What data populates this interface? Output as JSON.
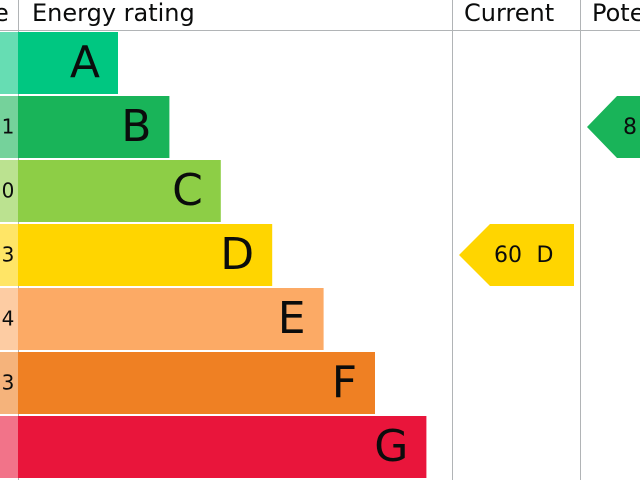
{
  "header": {
    "score": "e",
    "rating": "Energy rating",
    "current": "Current",
    "potential": "Pote"
  },
  "bands": [
    {
      "letter": "A",
      "score": "",
      "color": "#00c781",
      "light": "#66ddb3"
    },
    {
      "letter": "B",
      "score": "1",
      "color": "#19b459",
      "light": "#75d29b"
    },
    {
      "letter": "C",
      "score": "0",
      "color": "#8dce46",
      "light": "#bbe290"
    },
    {
      "letter": "D",
      "score": "3",
      "color": "#ffd500",
      "light": "#ffe566"
    },
    {
      "letter": "E",
      "score": "4",
      "color": "#fcaa65",
      "light": "#fdcca3"
    },
    {
      "letter": "F",
      "score": "3",
      "color": "#ef8023",
      "light": "#f5b37b"
    },
    {
      "letter": "G",
      "score": "",
      "color": "#e9153b",
      "light": "#f27389"
    }
  ],
  "current": {
    "score": "60",
    "band": "D",
    "row": 3
  },
  "potential": {
    "score": "8",
    "row": 1
  }
}
